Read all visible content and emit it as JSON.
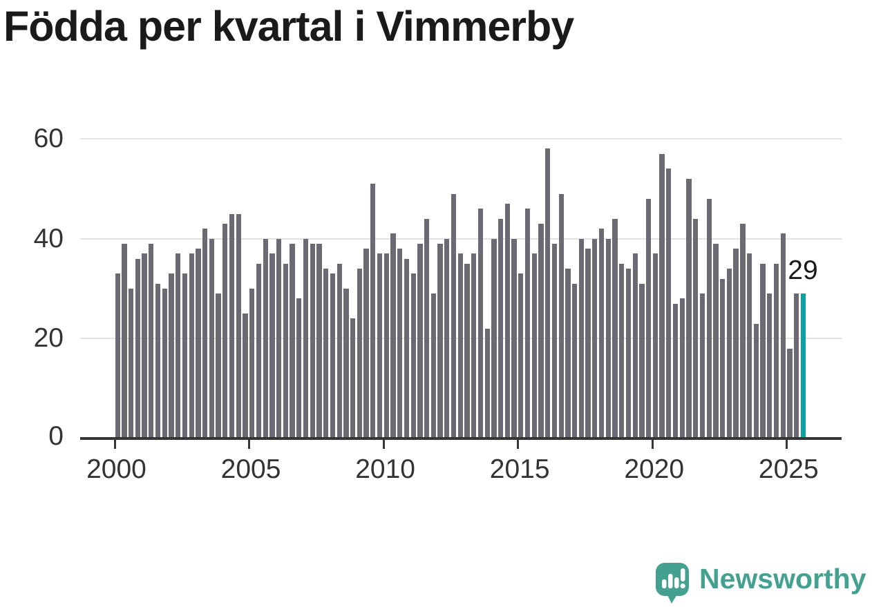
{
  "chart_data": {
    "type": "bar",
    "title": "Födda per kvartal i Vimmerby",
    "frequency": "quarterly",
    "x_start": "2000-Q1",
    "x_end": "2025-Q3",
    "values": [
      33,
      39,
      30,
      36,
      37,
      39,
      31,
      30,
      33,
      37,
      33,
      37,
      38,
      42,
      40,
      29,
      43,
      45,
      45,
      25,
      30,
      35,
      40,
      37,
      40,
      35,
      39,
      28,
      40,
      39,
      39,
      34,
      33,
      35,
      30,
      24,
      34,
      38,
      51,
      37,
      37,
      41,
      38,
      36,
      33,
      39,
      44,
      29,
      39,
      40,
      49,
      37,
      35,
      37,
      46,
      22,
      40,
      44,
      47,
      40,
      33,
      46,
      37,
      43,
      58,
      39,
      49,
      34,
      31,
      40,
      38,
      40,
      42,
      40,
      44,
      35,
      34,
      37,
      31,
      48,
      37,
      57,
      54,
      27,
      28,
      52,
      44,
      29,
      48,
      39,
      32,
      34,
      38,
      43,
      37,
      23,
      35,
      29,
      35,
      41,
      18,
      29,
      29
    ],
    "x_tick_labels": [
      "2000",
      "2005",
      "2010",
      "2015",
      "2020",
      "2025"
    ],
    "y_tick_labels": [
      "0",
      "20",
      "40",
      "60"
    ],
    "y_tick_values": [
      0,
      20,
      40,
      60
    ],
    "ylim": [
      0,
      60
    ],
    "grid": true,
    "legend": "none",
    "bar_color": "#6b6a72",
    "highlight_color": "#0aa2a2",
    "highlight_last": true,
    "annotation": {
      "text": "29",
      "target": "last-bar"
    }
  },
  "branding": {
    "logo_text": "Newsworthy",
    "logo_color": "#45a18f",
    "logo_icon": "newsworthy-speech-bubble-chart-icon"
  },
  "colors": {
    "background": "#ffffff",
    "title_text": "#1a1a1a",
    "axis_text": "#333333",
    "gridline": "#e2e2e2",
    "axis_line": "#363636"
  }
}
